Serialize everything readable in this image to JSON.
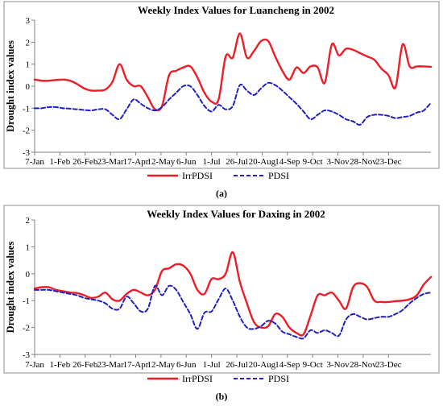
{
  "chart_data": [
    {
      "type": "line",
      "title": "Weekly Index Values for Luancheng in 2002",
      "ylabel": "Drought index values",
      "xlabel": "",
      "ylim": [
        -3,
        3
      ],
      "yticks": [
        -3,
        -2,
        -1,
        0,
        1,
        2,
        3
      ],
      "x_tick_labels": [
        "7-Jan",
        "1-Feb",
        "26-Feb",
        "23-Mar",
        "17-Apr",
        "12-May",
        "6-Jun",
        "1-Jul",
        "26-Jul",
        "20-Aug",
        "14-Sep",
        "9-Oct",
        "3-Nov",
        "28-Nov",
        "23-Dec"
      ],
      "x_unit": "week of 2002 (1 = 7-Jan)",
      "legend_position": "bottom",
      "grid": false,
      "caption": "(a)",
      "series": [
        {
          "name": "IrrPDSI",
          "color": "#ee1c25",
          "style": "solid",
          "points": [
            [
              1,
              0.3
            ],
            [
              2,
              0.25
            ],
            [
              3,
              0.25
            ],
            [
              4,
              0.28
            ],
            [
              5,
              0.3
            ],
            [
              6,
              0.25
            ],
            [
              7,
              0.1
            ],
            [
              8,
              -0.1
            ],
            [
              9,
              -0.2
            ],
            [
              10,
              -0.2
            ],
            [
              11,
              -0.15
            ],
            [
              12,
              0.2
            ],
            [
              13,
              1.0
            ],
            [
              14,
              0.3
            ],
            [
              15,
              0.0
            ],
            [
              16,
              0.0
            ],
            [
              17,
              -0.5
            ],
            [
              18,
              -1.05
            ],
            [
              19,
              -0.9
            ],
            [
              20,
              0.5
            ],
            [
              21,
              0.7
            ],
            [
              22,
              0.85
            ],
            [
              23,
              0.9
            ],
            [
              24,
              0.4
            ],
            [
              25,
              -0.3
            ],
            [
              26,
              -0.7
            ],
            [
              27,
              -0.6
            ],
            [
              28,
              1.35
            ],
            [
              29,
              1.3
            ],
            [
              30,
              2.4
            ],
            [
              31,
              1.3
            ],
            [
              32,
              1.6
            ],
            [
              33,
              2.05
            ],
            [
              34,
              2.05
            ],
            [
              35,
              1.35
            ],
            [
              36,
              0.7
            ],
            [
              37,
              0.3
            ],
            [
              38,
              0.85
            ],
            [
              39,
              0.6
            ],
            [
              40,
              0.9
            ],
            [
              41,
              0.85
            ],
            [
              42,
              0.15
            ],
            [
              43,
              1.9
            ],
            [
              44,
              1.4
            ],
            [
              45,
              1.7
            ],
            [
              46,
              1.65
            ],
            [
              47,
              1.5
            ],
            [
              48,
              1.35
            ],
            [
              49,
              1.2
            ],
            [
              50,
              0.8
            ],
            [
              51,
              0.5
            ],
            [
              52,
              -0.05
            ],
            [
              53,
              1.9
            ],
            [
              54,
              0.9
            ],
            [
              55,
              0.9
            ],
            [
              56,
              0.9
            ],
            [
              57,
              0.88
            ]
          ]
        },
        {
          "name": "PDSI",
          "color": "#1f1fbf",
          "style": "dashed",
          "points": [
            [
              1,
              -1.0
            ],
            [
              2,
              -1.0
            ],
            [
              3,
              -0.95
            ],
            [
              4,
              -0.95
            ],
            [
              5,
              -1.0
            ],
            [
              6,
              -1.02
            ],
            [
              7,
              -1.05
            ],
            [
              8,
              -1.08
            ],
            [
              9,
              -1.1
            ],
            [
              10,
              -1.05
            ],
            [
              11,
              -1.05
            ],
            [
              12,
              -1.3
            ],
            [
              13,
              -1.5
            ],
            [
              14,
              -1.05
            ],
            [
              15,
              -0.6
            ],
            [
              16,
              -0.8
            ],
            [
              17,
              -1.0
            ],
            [
              18,
              -1.1
            ],
            [
              19,
              -0.95
            ],
            [
              20,
              -0.6
            ],
            [
              21,
              -0.3
            ],
            [
              22,
              0.0
            ],
            [
              23,
              0.0
            ],
            [
              24,
              -0.4
            ],
            [
              25,
              -0.9
            ],
            [
              26,
              -1.15
            ],
            [
              27,
              -0.85
            ],
            [
              28,
              -1.05
            ],
            [
              29,
              -0.9
            ],
            [
              30,
              0.05
            ],
            [
              31,
              -0.2
            ],
            [
              32,
              -0.4
            ],
            [
              33,
              -0.1
            ],
            [
              34,
              0.15
            ],
            [
              35,
              0.05
            ],
            [
              36,
              -0.2
            ],
            [
              37,
              -0.5
            ],
            [
              38,
              -0.8
            ],
            [
              39,
              -1.15
            ],
            [
              40,
              -1.5
            ],
            [
              41,
              -1.3
            ],
            [
              42,
              -1.1
            ],
            [
              43,
              -1.15
            ],
            [
              44,
              -1.3
            ],
            [
              45,
              -1.5
            ],
            [
              46,
              -1.6
            ],
            [
              47,
              -1.75
            ],
            [
              48,
              -1.4
            ],
            [
              49,
              -1.3
            ],
            [
              50,
              -1.3
            ],
            [
              51,
              -1.35
            ],
            [
              52,
              -1.45
            ],
            [
              53,
              -1.4
            ],
            [
              54,
              -1.35
            ],
            [
              55,
              -1.2
            ],
            [
              56,
              -1.1
            ],
            [
              57,
              -0.75
            ]
          ]
        }
      ]
    },
    {
      "type": "line",
      "title": "Weekly Index Values for Daxing in 2002",
      "ylabel": "Drought index values",
      "xlabel": "",
      "ylim": [
        -3,
        2
      ],
      "yticks": [
        -3,
        -2,
        -1,
        0,
        1,
        2
      ],
      "x_tick_labels": [
        "7-Jan",
        "1-Feb",
        "26-Feb",
        "23-Mar",
        "17-Apr",
        "12-May",
        "6-Jun",
        "1-Jul",
        "26-Jul",
        "20-Aug",
        "14-Sep",
        "9-Oct",
        "3-Nov",
        "28-Nov",
        "23-Dec"
      ],
      "x_unit": "week of 2002 (1 = 7-Jan)",
      "legend_position": "bottom",
      "grid": false,
      "caption": "(b)",
      "series": [
        {
          "name": "IrrPDSI",
          "color": "#ee1c25",
          "style": "solid",
          "points": [
            [
              1,
              -0.55
            ],
            [
              2,
              -0.5
            ],
            [
              3,
              -0.5
            ],
            [
              4,
              -0.6
            ],
            [
              5,
              -0.65
            ],
            [
              6,
              -0.7
            ],
            [
              7,
              -0.72
            ],
            [
              8,
              -0.8
            ],
            [
              9,
              -0.9
            ],
            [
              10,
              -0.85
            ],
            [
              11,
              -0.7
            ],
            [
              12,
              -0.95
            ],
            [
              13,
              -1.0
            ],
            [
              14,
              -0.75
            ],
            [
              15,
              -0.6
            ],
            [
              16,
              -0.7
            ],
            [
              17,
              -0.8
            ],
            [
              18,
              -0.6
            ],
            [
              19,
              0.1
            ],
            [
              20,
              0.2
            ],
            [
              21,
              0.35
            ],
            [
              22,
              0.3
            ],
            [
              23,
              0.0
            ],
            [
              24,
              -0.6
            ],
            [
              25,
              -0.75
            ],
            [
              26,
              -0.2
            ],
            [
              27,
              -0.2
            ],
            [
              28,
              0.0
            ],
            [
              29,
              0.8
            ],
            [
              30,
              -0.3
            ],
            [
              31,
              -1.1
            ],
            [
              32,
              -1.8
            ],
            [
              33,
              -2.0
            ],
            [
              34,
              -1.95
            ],
            [
              35,
              -1.5
            ],
            [
              36,
              -1.6
            ],
            [
              37,
              -2.0
            ],
            [
              38,
              -2.2
            ],
            [
              39,
              -2.25
            ],
            [
              40,
              -1.55
            ],
            [
              41,
              -0.8
            ],
            [
              42,
              -0.8
            ],
            [
              43,
              -0.7
            ],
            [
              44,
              -1.0
            ],
            [
              45,
              -1.3
            ],
            [
              46,
              -0.5
            ],
            [
              47,
              -0.35
            ],
            [
              48,
              -0.5
            ],
            [
              49,
              -1.0
            ],
            [
              50,
              -1.05
            ],
            [
              51,
              -1.05
            ],
            [
              52,
              -1.02
            ],
            [
              53,
              -1.0
            ],
            [
              54,
              -0.95
            ],
            [
              55,
              -0.8
            ],
            [
              56,
              -0.4
            ],
            [
              57,
              -0.12
            ]
          ]
        },
        {
          "name": "PDSI",
          "color": "#1f1fbf",
          "style": "dashed",
          "points": [
            [
              1,
              -0.6
            ],
            [
              2,
              -0.6
            ],
            [
              3,
              -0.6
            ],
            [
              4,
              -0.65
            ],
            [
              5,
              -0.7
            ],
            [
              6,
              -0.75
            ],
            [
              7,
              -0.8
            ],
            [
              8,
              -0.9
            ],
            [
              9,
              -0.95
            ],
            [
              10,
              -1.0
            ],
            [
              11,
              -1.1
            ],
            [
              12,
              -1.3
            ],
            [
              13,
              -1.3
            ],
            [
              14,
              -0.85
            ],
            [
              15,
              -1.1
            ],
            [
              16,
              -1.4
            ],
            [
              17,
              -1.3
            ],
            [
              18,
              -0.45
            ],
            [
              19,
              -0.8
            ],
            [
              20,
              -0.45
            ],
            [
              21,
              -0.6
            ],
            [
              22,
              -1.05
            ],
            [
              23,
              -1.5
            ],
            [
              24,
              -2.05
            ],
            [
              25,
              -1.45
            ],
            [
              26,
              -1.4
            ],
            [
              27,
              -0.95
            ],
            [
              28,
              -0.55
            ],
            [
              29,
              -1.0
            ],
            [
              30,
              -1.6
            ],
            [
              31,
              -2.0
            ],
            [
              32,
              -2.05
            ],
            [
              33,
              -1.95
            ],
            [
              34,
              -1.75
            ],
            [
              35,
              -1.85
            ],
            [
              36,
              -2.15
            ],
            [
              37,
              -2.25
            ],
            [
              38,
              -2.35
            ],
            [
              39,
              -2.4
            ],
            [
              40,
              -2.1
            ],
            [
              41,
              -2.2
            ],
            [
              42,
              -2.1
            ],
            [
              43,
              -2.2
            ],
            [
              44,
              -2.3
            ],
            [
              45,
              -1.7
            ],
            [
              46,
              -1.5
            ],
            [
              47,
              -1.6
            ],
            [
              48,
              -1.7
            ],
            [
              49,
              -1.65
            ],
            [
              50,
              -1.6
            ],
            [
              51,
              -1.6
            ],
            [
              52,
              -1.5
            ],
            [
              53,
              -1.35
            ],
            [
              54,
              -1.1
            ],
            [
              55,
              -0.9
            ],
            [
              56,
              -0.75
            ],
            [
              57,
              -0.7
            ]
          ]
        }
      ]
    }
  ]
}
